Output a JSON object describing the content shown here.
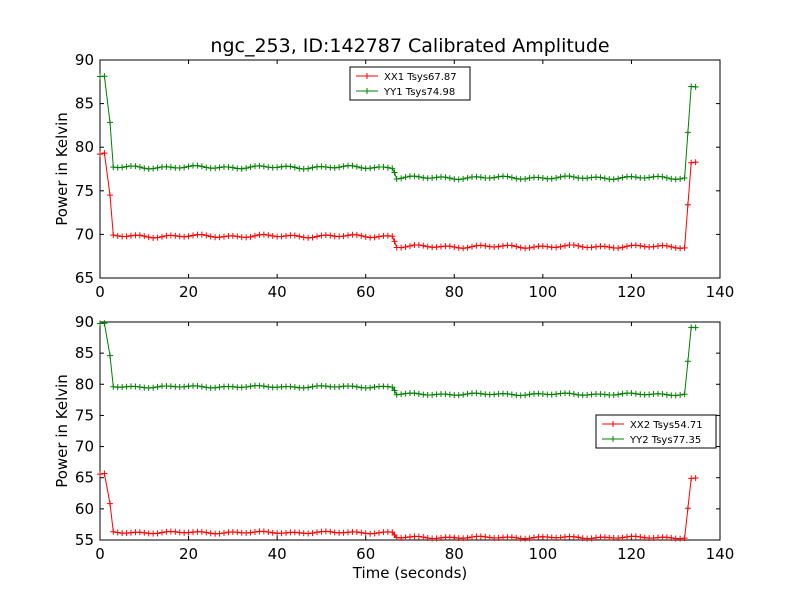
{
  "title": "ngc_253, ID:142787 Calibrated Amplitude",
  "chart_data": [
    {
      "type": "line",
      "ylabel": "Power in Kelvin",
      "xlabel": "",
      "xlim": [
        0,
        140
      ],
      "ylim": [
        65,
        90
      ],
      "xticks": [
        0,
        20,
        40,
        60,
        80,
        100,
        120,
        140
      ],
      "yticks": [
        65,
        70,
        75,
        80,
        85,
        90
      ],
      "legend": "top-center",
      "series": [
        {
          "name": "XX1 Tsys67.87",
          "color": "#ff0000",
          "segments": [
            {
              "x0": 0,
              "x1": 1.5,
              "y": 79.2
            },
            {
              "x0": 3,
              "x1": 66,
              "y": 69.8
            },
            {
              "x0": 67,
              "x1": 132,
              "y": 68.6
            },
            {
              "x0": 133.5,
              "x1": 135,
              "y": 78.2
            }
          ],
          "transitions": [
            [
              1.5,
              79.2,
              3,
              69.8
            ],
            [
              66,
              69.8,
              67,
              68.6
            ],
            [
              132,
              68.6,
              133.5,
              78.2
            ]
          ]
        },
        {
          "name": "YY1 Tsys74.98",
          "color": "#008000",
          "segments": [
            {
              "x0": 0,
              "x1": 1.5,
              "y": 88.0
            },
            {
              "x0": 3,
              "x1": 66,
              "y": 77.7
            },
            {
              "x0": 67,
              "x1": 132,
              "y": 76.5
            },
            {
              "x0": 133.5,
              "x1": 135,
              "y": 86.9
            }
          ],
          "transitions": [
            [
              1.5,
              88.0,
              3,
              77.7
            ],
            [
              66,
              77.7,
              67,
              76.5
            ],
            [
              132,
              76.5,
              133.5,
              86.9
            ]
          ]
        }
      ]
    },
    {
      "type": "line",
      "ylabel": "Power in Kelvin",
      "xlabel": "Time (seconds)",
      "xlim": [
        0,
        140
      ],
      "ylim": [
        55,
        90
      ],
      "xticks": [
        0,
        20,
        40,
        60,
        80,
        100,
        120,
        140
      ],
      "yticks": [
        55,
        60,
        65,
        70,
        75,
        80,
        85,
        90
      ],
      "legend": "right",
      "series": [
        {
          "name": "XX2 Tsys54.71",
          "color": "#ff0000",
          "segments": [
            {
              "x0": 0,
              "x1": 1.5,
              "y": 65.5
            },
            {
              "x0": 3,
              "x1": 66,
              "y": 56.2
            },
            {
              "x0": 67,
              "x1": 132,
              "y": 55.4
            },
            {
              "x0": 133.5,
              "x1": 135,
              "y": 64.8
            }
          ],
          "transitions": [
            [
              1.5,
              65.5,
              3,
              56.2
            ],
            [
              66,
              56.2,
              67,
              55.4
            ],
            [
              132,
              55.4,
              133.5,
              64.8
            ]
          ]
        },
        {
          "name": "YY2 Tsys77.35",
          "color": "#008000",
          "segments": [
            {
              "x0": 0,
              "x1": 1.5,
              "y": 89.6
            },
            {
              "x0": 3,
              "x1": 66,
              "y": 79.6
            },
            {
              "x0": 67,
              "x1": 132,
              "y": 78.4
            },
            {
              "x0": 133.5,
              "x1": 135,
              "y": 89.0
            }
          ],
          "transitions": [
            [
              1.5,
              89.6,
              3,
              79.6
            ],
            [
              66,
              79.6,
              67,
              78.4
            ],
            [
              132,
              78.4,
              133.5,
              89.0
            ]
          ]
        }
      ]
    }
  ]
}
